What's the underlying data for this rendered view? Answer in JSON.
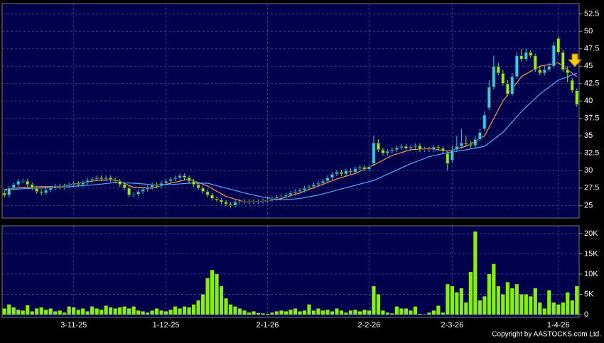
{
  "chart_data": [
    {
      "type": "candlestick",
      "up_color": "#33ccee",
      "down_color": "#99ee22",
      "open": [
        26.8,
        26.5,
        27.5,
        28,
        28.5,
        28.5,
        28,
        27.5,
        27,
        26.8,
        27.2,
        27.5,
        27.8,
        27.6,
        27.8,
        28,
        28.2,
        28,
        28.3,
        28.6,
        28.8,
        29,
        28.8,
        29,
        28.7,
        28.5,
        28,
        27.5,
        26.5,
        26.6,
        27,
        27.3,
        27.6,
        28,
        27.8,
        28.2,
        28.5,
        28.8,
        29,
        29.3,
        29,
        28.5,
        28,
        27.5,
        27,
        26.5,
        26,
        25.8,
        25.5,
        25.2,
        25,
        25.5,
        25.6,
        25.5,
        25.6,
        25.5,
        25.6,
        25.7,
        25.8,
        26,
        26.2,
        26.3,
        26.5,
        26.8,
        27,
        27.2,
        27.5,
        27.7,
        28,
        28.2,
        28.5,
        29,
        29.5,
        29.8,
        29.5,
        30,
        29.8,
        30.3,
        30.5,
        30.2,
        31,
        34,
        33,
        32.5,
        32.8,
        33,
        33.3,
        33.5,
        33.2,
        33.4,
        33.6,
        33,
        33.1,
        33,
        33.4,
        33.2,
        32.5,
        31.5,
        33,
        33.5,
        34,
        33.8,
        33.6,
        34.5,
        36,
        39,
        42,
        45,
        44,
        42.5,
        41,
        43.5,
        46.5,
        46,
        47,
        46.5,
        44.5,
        44,
        44.5,
        45,
        49,
        47,
        44.5,
        43,
        41.5
      ],
      "high": [
        27.1,
        27.8,
        28.3,
        28.8,
        28.8,
        28.8,
        28.3,
        27.8,
        27.3,
        27.5,
        27.8,
        28.1,
        28.1,
        28.1,
        28.3,
        28.5,
        28.5,
        28.6,
        28.9,
        29.1,
        29.3,
        29.3,
        29.3,
        29.3,
        29,
        28.8,
        28.3,
        27.8,
        26.9,
        27.3,
        27.6,
        27.9,
        28.3,
        28.3,
        28.5,
        28.8,
        29.1,
        29.3,
        29.6,
        29.6,
        29.3,
        28.8,
        28.3,
        27.8,
        27.3,
        26.8,
        26.3,
        26.1,
        25.8,
        25.5,
        25.8,
        25.9,
        25.9,
        25.9,
        25.9,
        25.9,
        26,
        26.1,
        26.3,
        26.5,
        26.6,
        26.8,
        27.1,
        27.3,
        27.5,
        27.8,
        28,
        28.3,
        28.5,
        28.8,
        29.3,
        29.8,
        30.1,
        30.1,
        30.3,
        30.3,
        30.6,
        30.8,
        30.8,
        30.9,
        35,
        34.5,
        33.3,
        33.1,
        33.3,
        33.6,
        33.8,
        33.8,
        33.7,
        33.9,
        33.9,
        33.4,
        33.4,
        33.7,
        33.7,
        33.5,
        32.8,
        33.5,
        35,
        36,
        35,
        34.3,
        35,
        36,
        38.5,
        43,
        46.5,
        45.5,
        44.5,
        43,
        44,
        47,
        47.5,
        47.5,
        47.3,
        46.8,
        45,
        45,
        45.5,
        48.5,
        49.3,
        47.3,
        45,
        43.3,
        41.8
      ],
      "low": [
        26.2,
        26.2,
        27.2,
        27.7,
        28.2,
        27.7,
        27.2,
        26.7,
        26.5,
        26.5,
        26.9,
        27.2,
        27.3,
        27.3,
        27.5,
        27.7,
        27.7,
        27.7,
        28,
        28.3,
        28.5,
        28.5,
        28.5,
        28.4,
        28.2,
        27.7,
        27.2,
        26.2,
        26.2,
        26.3,
        26.7,
        27,
        27.3,
        27.5,
        27.5,
        27.9,
        28.2,
        28.5,
        28.7,
        28.7,
        28.2,
        27.7,
        27.2,
        26.7,
        26.2,
        25.7,
        25.5,
        25.2,
        24.9,
        24.7,
        24.7,
        25.2,
        25.2,
        25.2,
        25.2,
        25.2,
        25.3,
        25.4,
        25.5,
        25.7,
        25.9,
        26,
        26.2,
        26.5,
        26.7,
        26.9,
        27.2,
        27.4,
        27.7,
        27.9,
        28.2,
        28.7,
        29.2,
        29.2,
        29.2,
        29.5,
        29.5,
        30,
        29.9,
        29.9,
        30.7,
        32.7,
        32.2,
        32.2,
        32.5,
        32.7,
        33,
        32.9,
        32.9,
        33.1,
        32.7,
        32.7,
        32.7,
        32.7,
        32.9,
        32.5,
        30,
        31.2,
        32.7,
        33.2,
        33.5,
        33.3,
        33.3,
        34.2,
        35.7,
        38.7,
        41.7,
        43.7,
        42.2,
        40.7,
        40.7,
        43.2,
        45.7,
        45.7,
        46.2,
        44.2,
        43.7,
        43.7,
        44.2,
        44.7,
        46.7,
        44.2,
        42.7,
        41.2,
        39.2
      ],
      "close": [
        26.5,
        27.5,
        28,
        28.5,
        28.5,
        28,
        27.5,
        27,
        26.8,
        27.2,
        27.5,
        27.8,
        27.6,
        27.8,
        28,
        28.2,
        28,
        28.3,
        28.6,
        28.8,
        29,
        28.8,
        29,
        28.7,
        28.5,
        28,
        27.5,
        26.5,
        26.6,
        27,
        27.3,
        27.6,
        28,
        27.8,
        28.2,
        28.5,
        28.8,
        29,
        29.3,
        29,
        28.5,
        28,
        27.5,
        27,
        26.5,
        26,
        25.8,
        25.5,
        25.2,
        25,
        25.5,
        25.6,
        25.5,
        25.6,
        25.5,
        25.6,
        25.7,
        25.8,
        26,
        26.2,
        26.3,
        26.5,
        26.8,
        27,
        27.2,
        27.5,
        27.7,
        28,
        28.2,
        28.5,
        29,
        29.5,
        29.8,
        29.5,
        30,
        29.8,
        30.3,
        30.5,
        30.2,
        30.6,
        34,
        33,
        32.5,
        32.8,
        33,
        33.3,
        33.5,
        33.2,
        33.4,
        33.6,
        33,
        33.1,
        33,
        33.4,
        33.2,
        32.8,
        31,
        33,
        33.5,
        34,
        33.8,
        33.6,
        34.5,
        35.5,
        38,
        42,
        45,
        44,
        42.5,
        41,
        43.5,
        46.5,
        46,
        47,
        46.5,
        44.5,
        44,
        44.5,
        45,
        48,
        47,
        44.5,
        44,
        41.5,
        39.5
      ],
      "series": [
        {
          "color": "#ff9944",
          "x": [
            0,
            4,
            8,
            12,
            16,
            20,
            24,
            28,
            32,
            36,
            40,
            44,
            48,
            52,
            56,
            60,
            64,
            68,
            72,
            76,
            80,
            84,
            88,
            92,
            96,
            100,
            104,
            108,
            112,
            116,
            120,
            124
          ],
          "values": [
            27.3,
            27.6,
            27.7,
            27.7,
            28.2,
            28.6,
            28.7,
            27.6,
            27.5,
            28.2,
            28.8,
            27.8,
            26.3,
            25.5,
            25.6,
            26,
            26.8,
            27.8,
            28.8,
            29.6,
            30.8,
            32.2,
            33,
            33.2,
            32.8,
            33.5,
            35,
            40,
            43.5,
            45,
            45.5,
            43.5
          ]
        },
        {
          "color": "#55aaff",
          "x": [
            0,
            4,
            8,
            12,
            16,
            20,
            24,
            28,
            32,
            36,
            40,
            44,
            48,
            52,
            56,
            60,
            64,
            68,
            72,
            76,
            80,
            84,
            88,
            92,
            96,
            100,
            104,
            108,
            112,
            116,
            120,
            124
          ],
          "values": [
            27.2,
            27.4,
            27.5,
            27.6,
            27.8,
            28,
            28.3,
            28.2,
            28,
            28,
            28.2,
            28.2,
            27.5,
            26.8,
            26.2,
            25.8,
            26,
            26.5,
            27.2,
            27.9,
            28.6,
            29.8,
            31,
            32,
            32.6,
            33,
            33.5,
            35.5,
            38.5,
            41,
            43,
            44
          ]
        }
      ],
      "ylim": [
        23.2,
        54
      ],
      "yticks": [
        25,
        27.5,
        30,
        32.5,
        35,
        37.5,
        40,
        42.5,
        45,
        47.5,
        50,
        52.5
      ],
      "grid": true
    },
    {
      "type": "bar",
      "color": "#88ee11",
      "categories": [
        null,
        null,
        null,
        null,
        null,
        null,
        null,
        null,
        null,
        null,
        null,
        null,
        null,
        null,
        null,
        "3-11-25",
        null,
        null,
        null,
        null,
        null,
        null,
        null,
        null,
        null,
        null,
        null,
        null,
        null,
        null,
        null,
        null,
        null,
        null,
        null,
        "1-12-25",
        null,
        null,
        null,
        null,
        null,
        null,
        null,
        null,
        null,
        null,
        null,
        null,
        null,
        null,
        null,
        null,
        null,
        null,
        null,
        null,
        null,
        "2-1-26",
        null,
        null,
        null,
        null,
        null,
        null,
        null,
        null,
        null,
        null,
        null,
        null,
        null,
        null,
        null,
        null,
        null,
        null,
        null,
        null,
        null,
        "2-2-26",
        null,
        null,
        null,
        null,
        null,
        null,
        null,
        null,
        null,
        null,
        null,
        null,
        null,
        null,
        null,
        null,
        null,
        "2-3-26",
        null,
        null,
        null,
        null,
        null,
        null,
        null,
        null,
        null,
        null,
        null,
        null,
        null,
        null,
        null,
        null,
        null,
        null,
        null,
        null,
        null,
        null,
        "1-4-26",
        null,
        null,
        null,
        null
      ],
      "values": [
        1500,
        2500,
        1800,
        1200,
        1000,
        2300,
        800,
        1500,
        1800,
        1200,
        1500,
        800,
        1000,
        500,
        2000,
        1800,
        1200,
        1500,
        800,
        2000,
        1500,
        1200,
        2200,
        1800,
        1500,
        1800,
        2000,
        1500,
        2000,
        1000,
        800,
        500,
        1000,
        1500,
        1000,
        800,
        1200,
        2000,
        1500,
        2000,
        1800,
        2500,
        3500,
        5000,
        9000,
        11000,
        10000,
        7000,
        4000,
        2500,
        2000,
        1500,
        1000,
        500,
        800,
        400,
        300,
        200,
        500,
        800,
        1000,
        800,
        1200,
        1500,
        800,
        1000,
        2500,
        1000,
        1500,
        1000,
        1200,
        800,
        1500,
        1000,
        500,
        1000,
        1200,
        800,
        1200,
        1000,
        7000,
        5000,
        1000,
        500,
        300,
        2000,
        1500,
        1500,
        1000,
        2000,
        200,
        100,
        500,
        1000,
        2200,
        500,
        7500,
        7000,
        5500,
        6500,
        3000,
        10500,
        20500,
        3500,
        4500,
        10000,
        12500,
        7000,
        5000,
        8000,
        6500,
        7500,
        5000,
        5000,
        4500,
        6500,
        3000,
        1500,
        6000,
        3000,
        2500,
        3000,
        5500,
        3500,
        7000
      ],
      "ylim": [
        -700,
        21900
      ],
      "yticks": [
        0,
        {
          "value": 5000,
          "label": "5K"
        },
        {
          "value": 10000,
          "label": "10K"
        },
        {
          "value": 15000,
          "label": "15K"
        },
        {
          "value": 20000,
          "label": "20K"
        }
      ],
      "grid": true,
      "annotation": "Copyright by AASTOCKS.com Ltd."
    }
  ]
}
